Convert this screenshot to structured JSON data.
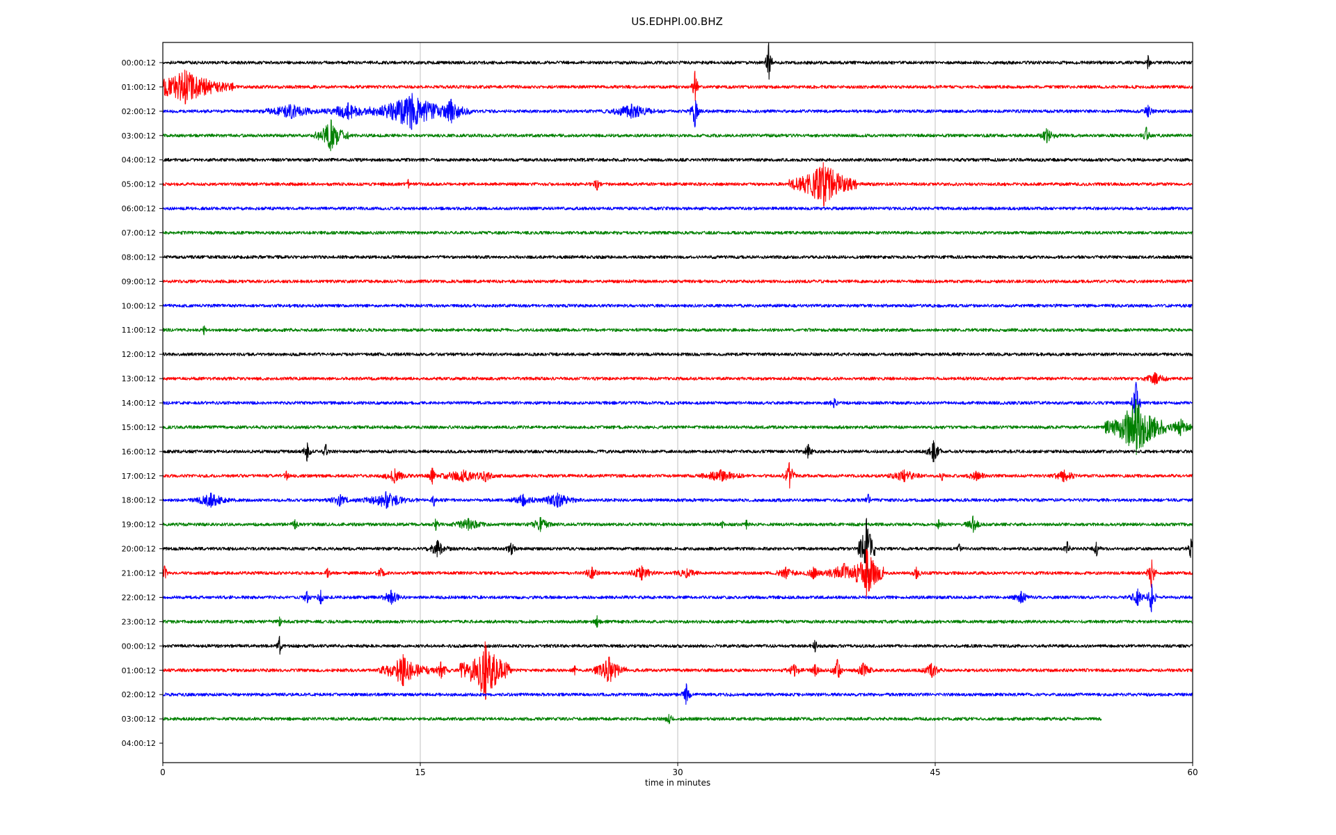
{
  "chart_data": {
    "type": "line",
    "title": "US.EDHPI.00.BHZ",
    "xlabel": "time in minutes",
    "ylabel": "",
    "xlim": [
      0,
      60
    ],
    "xticks": [
      0,
      15,
      30,
      45,
      60
    ],
    "xtick_labels": [
      "0",
      "15",
      "30",
      "45",
      "60"
    ],
    "grid": "vertical at x ticks",
    "colors": [
      "#000000",
      "#ff0000",
      "#0000ff",
      "#008000"
    ],
    "row_labels": [
      "00:00:12",
      "01:00:12",
      "02:00:12",
      "03:00:12",
      "04:00:12",
      "05:00:12",
      "06:00:12",
      "07:00:12",
      "08:00:12",
      "09:00:12",
      "10:00:12",
      "11:00:12",
      "12:00:12",
      "13:00:12",
      "14:00:12",
      "15:00:12",
      "16:00:12",
      "17:00:12",
      "18:00:12",
      "19:00:12",
      "20:00:12",
      "21:00:12",
      "22:00:12",
      "23:00:12",
      "00:00:12",
      "01:00:12",
      "02:00:12",
      "03:00:12",
      "04:00:12"
    ],
    "traces": [
      {
        "end": 60,
        "events": [
          [
            35.3,
            1.6,
            0.2
          ],
          [
            57.4,
            0.6,
            0.2
          ]
        ]
      },
      {
        "end": 60,
        "events": [
          [
            1.3,
            1.4,
            2.8
          ],
          [
            31.0,
            1.3,
            0.25
          ]
        ]
      },
      {
        "end": 60,
        "events": [
          [
            7.5,
            0.6,
            2.5
          ],
          [
            10.8,
            0.7,
            1.8
          ],
          [
            14.5,
            1.5,
            2.5
          ],
          [
            16.8,
            1.0,
            1.2
          ],
          [
            27.3,
            0.6,
            2.0
          ],
          [
            31.0,
            1.3,
            0.3
          ],
          [
            57.4,
            0.5,
            0.5
          ]
        ]
      },
      {
        "end": 60,
        "events": [
          [
            9.8,
            1.3,
            1.0
          ],
          [
            51.5,
            0.6,
            0.8
          ],
          [
            57.3,
            0.7,
            0.3
          ]
        ]
      },
      {
        "end": 60,
        "events": []
      },
      {
        "end": 60,
        "events": [
          [
            14.3,
            0.4,
            0.2
          ],
          [
            25.3,
            0.5,
            0.4
          ],
          [
            38.5,
            1.8,
            2.0
          ]
        ]
      },
      {
        "end": 60,
        "events": []
      },
      {
        "end": 60,
        "events": []
      },
      {
        "end": 60,
        "events": []
      },
      {
        "end": 60,
        "events": []
      },
      {
        "end": 60,
        "events": []
      },
      {
        "end": 60,
        "events": [
          [
            2.4,
            0.4,
            0.2
          ]
        ]
      },
      {
        "end": 60,
        "events": []
      },
      {
        "end": 60,
        "events": [
          [
            57.8,
            0.5,
            1.2
          ]
        ]
      },
      {
        "end": 60,
        "events": [
          [
            39.1,
            0.4,
            0.5
          ],
          [
            56.7,
            1.7,
            0.3
          ]
        ]
      },
      {
        "end": 60,
        "events": [
          [
            56.7,
            2.3,
            1.8
          ],
          [
            59.3,
            0.7,
            1.0
          ]
        ]
      },
      {
        "end": 60,
        "events": [
          [
            8.4,
            0.8,
            0.3
          ],
          [
            9.5,
            0.6,
            0.3
          ],
          [
            37.6,
            0.6,
            0.4
          ],
          [
            44.9,
            0.9,
            0.5
          ]
        ]
      },
      {
        "end": 60,
        "events": [
          [
            7.2,
            0.4,
            0.3
          ],
          [
            13.5,
            0.6,
            1.0
          ],
          [
            15.7,
            0.7,
            0.3
          ],
          [
            17.5,
            0.5,
            3.0
          ],
          [
            18.8,
            0.5,
            0.8
          ],
          [
            32.5,
            0.5,
            2.0
          ],
          [
            36.5,
            1.1,
            0.4
          ],
          [
            43.2,
            0.5,
            1.5
          ],
          [
            45.4,
            0.4,
            0.3
          ],
          [
            47.4,
            0.4,
            1.0
          ],
          [
            52.5,
            0.5,
            1.2
          ]
        ]
      },
      {
        "end": 60,
        "events": [
          [
            2.8,
            0.6,
            1.5
          ],
          [
            10.3,
            0.5,
            1.0
          ],
          [
            13.0,
            0.7,
            1.8
          ],
          [
            15.8,
            0.5,
            0.3
          ],
          [
            21.0,
            0.5,
            1.2
          ],
          [
            23.0,
            0.6,
            1.5
          ],
          [
            41.1,
            0.5,
            0.3
          ]
        ]
      },
      {
        "end": 60,
        "events": [
          [
            7.7,
            0.4,
            0.4
          ],
          [
            15.9,
            0.5,
            0.3
          ],
          [
            17.8,
            0.5,
            1.5
          ],
          [
            22.0,
            0.6,
            0.8
          ],
          [
            32.6,
            0.3,
            0.3
          ],
          [
            34.0,
            0.4,
            0.3
          ],
          [
            45.2,
            0.4,
            0.4
          ],
          [
            47.2,
            0.7,
            0.5
          ]
        ]
      },
      {
        "end": 60,
        "events": [
          [
            16.0,
            0.7,
            0.8
          ],
          [
            20.3,
            0.5,
            0.5
          ],
          [
            41.0,
            2.5,
            0.5
          ],
          [
            46.4,
            0.4,
            0.3
          ],
          [
            52.7,
            0.6,
            0.3
          ],
          [
            54.4,
            0.6,
            0.3
          ],
          [
            59.9,
            0.8,
            0.3
          ]
        ]
      },
      {
        "end": 60,
        "events": [
          [
            0.1,
            0.6,
            0.3
          ],
          [
            9.6,
            0.4,
            0.3
          ],
          [
            12.7,
            0.4,
            0.6
          ],
          [
            25.0,
            0.5,
            0.8
          ],
          [
            27.9,
            0.6,
            1.0
          ],
          [
            30.5,
            0.4,
            1.2
          ],
          [
            36.3,
            0.5,
            1.0
          ],
          [
            37.9,
            0.5,
            0.8
          ],
          [
            39.7,
            0.8,
            1.5
          ],
          [
            41.0,
            2.0,
            1.0
          ],
          [
            43.9,
            0.5,
            0.5
          ],
          [
            57.6,
            1.2,
            0.3
          ]
        ]
      },
      {
        "end": 60,
        "events": [
          [
            8.4,
            0.5,
            0.4
          ],
          [
            9.2,
            0.6,
            0.3
          ],
          [
            13.3,
            0.6,
            0.8
          ],
          [
            50.0,
            0.5,
            0.8
          ],
          [
            56.8,
            0.7,
            0.6
          ],
          [
            57.6,
            1.2,
            0.3
          ]
        ]
      },
      {
        "end": 60,
        "events": [
          [
            6.8,
            0.4,
            0.3
          ],
          [
            25.3,
            0.5,
            0.3
          ]
        ]
      },
      {
        "end": 60,
        "events": [
          [
            6.8,
            0.8,
            0.2
          ],
          [
            38.0,
            0.5,
            0.4
          ]
        ]
      },
      {
        "end": 60,
        "events": [
          [
            14.0,
            1.3,
            1.5
          ],
          [
            16.2,
            0.7,
            0.6
          ],
          [
            18.8,
            2.4,
            1.5
          ],
          [
            24.0,
            0.4,
            0.3
          ],
          [
            26.0,
            1.1,
            1.0
          ],
          [
            36.8,
            0.5,
            0.8
          ],
          [
            38.0,
            0.5,
            0.5
          ],
          [
            39.3,
            0.9,
            0.4
          ],
          [
            40.8,
            0.6,
            0.8
          ],
          [
            44.8,
            0.6,
            0.8
          ]
        ]
      },
      {
        "end": 60,
        "events": [
          [
            30.5,
            0.9,
            0.3
          ]
        ]
      },
      {
        "end": 54.7,
        "events": [
          [
            29.5,
            0.4,
            0.5
          ]
        ]
      },
      {
        "end": 0,
        "events": []
      }
    ]
  }
}
